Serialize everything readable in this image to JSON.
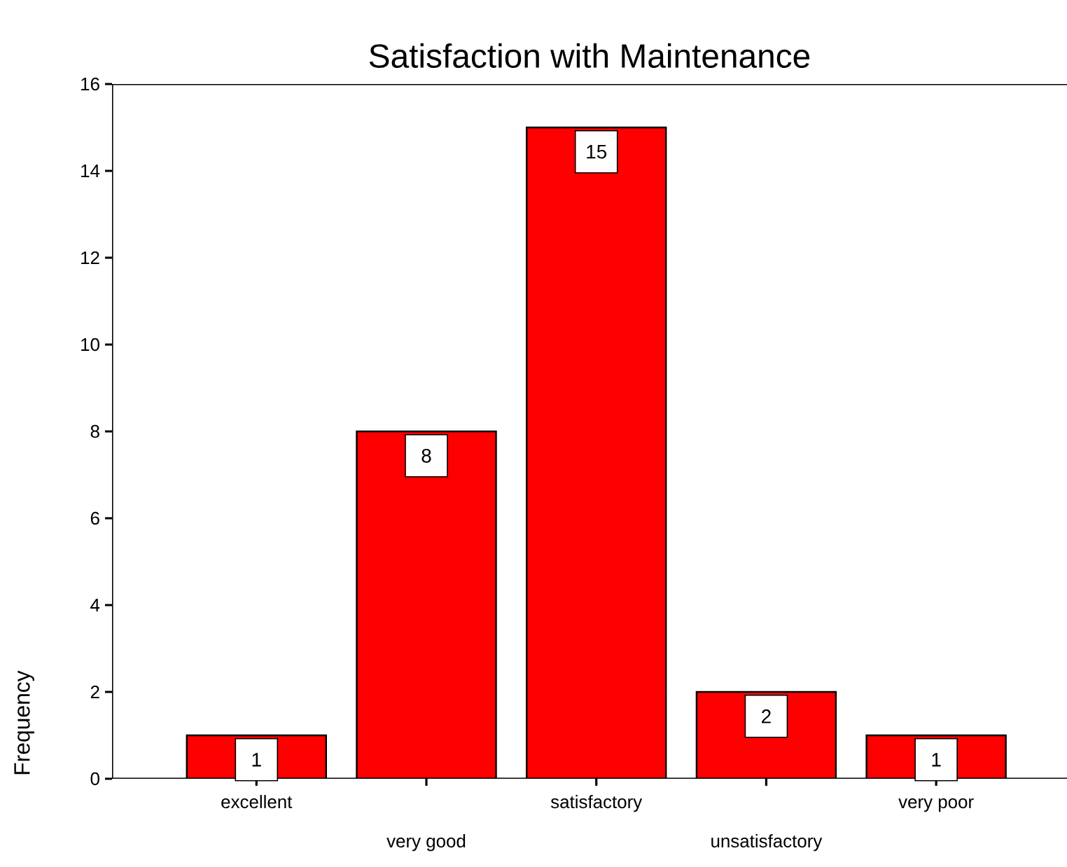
{
  "chart_data": {
    "type": "bar",
    "title": "Satisfaction with Maintenance",
    "ylabel": "Frequency",
    "categories": [
      "excellent",
      "very good",
      "satisfactory",
      "unsatisfactory",
      "very poor"
    ],
    "values": [
      1,
      8,
      15,
      2,
      1
    ],
    "color": "#ff0000",
    "ylim": [
      0,
      16
    ],
    "yticks": [
      0,
      2,
      4,
      6,
      8,
      10,
      12,
      14,
      16
    ],
    "data_labels": true
  }
}
